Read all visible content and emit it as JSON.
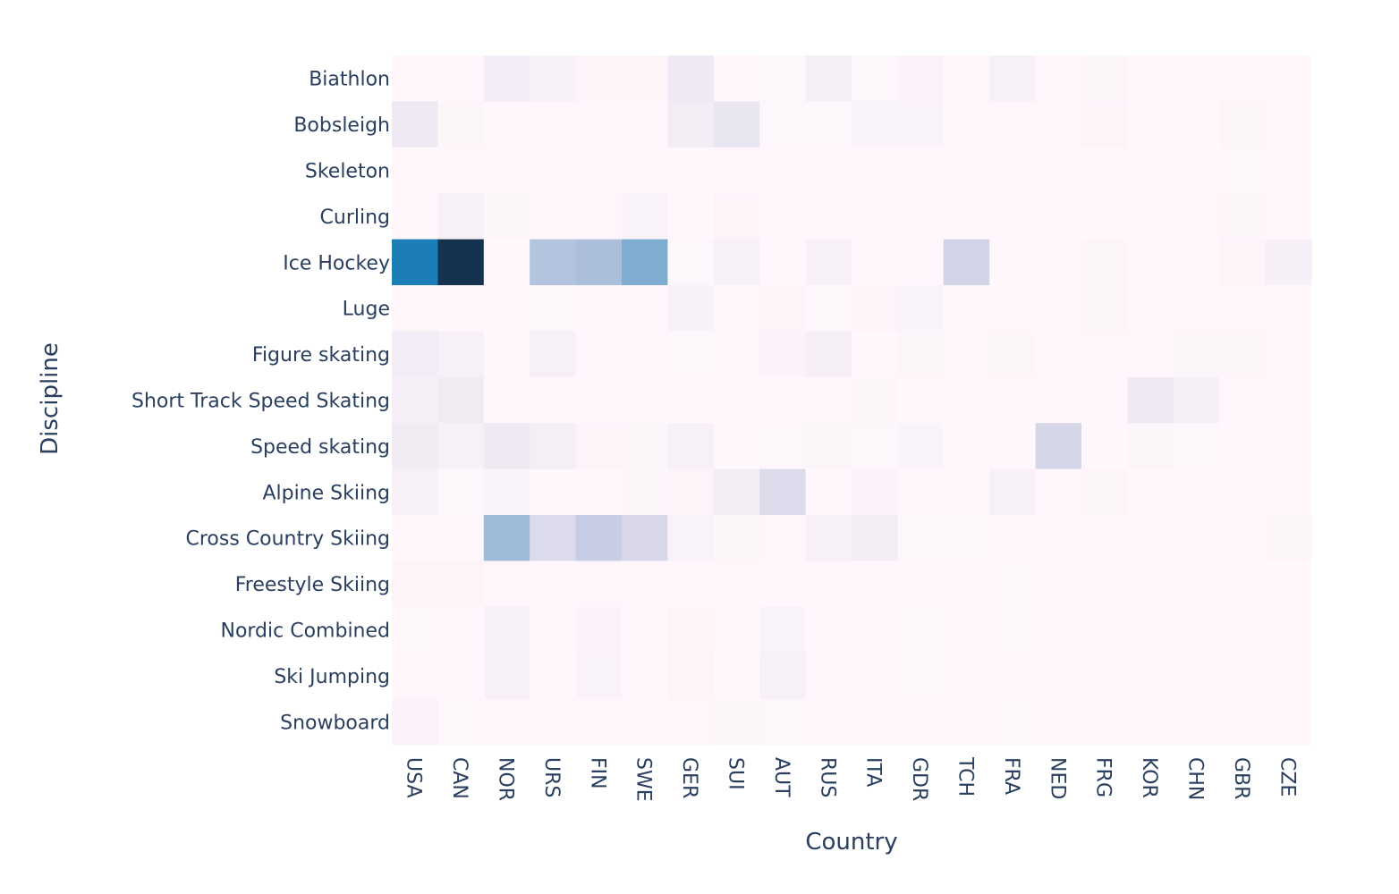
{
  "chart_data": {
    "type": "heatmap",
    "xlabel": "Country",
    "ylabel": "Discipline",
    "x": [
      "USA",
      "CAN",
      "NOR",
      "URS",
      "FIN",
      "SWE",
      "GER",
      "SUI",
      "AUT",
      "RUS",
      "ITA",
      "GDR",
      "TCH",
      "FRA",
      "NED",
      "FRG",
      "KOR",
      "CHN",
      "GBR",
      "CZE"
    ],
    "y": [
      "Biathlon",
      "Bobsleigh",
      "Skeleton",
      "Curling",
      "Ice Hockey",
      "Luge",
      "Figure skating",
      "Short Track Speed Skating",
      "Speed skating",
      "Alpine Skiing",
      "Cross Country Skiing",
      "Freestyle Skiing",
      "Nordic Combined",
      "Ski Jumping",
      "Snowboard"
    ],
    "z": [
      [
        0,
        0,
        32,
        16,
        8,
        8,
        38,
        0,
        4,
        26,
        4,
        10,
        0,
        20,
        0,
        6,
        0,
        0,
        0,
        2
      ],
      [
        40,
        6,
        0,
        2,
        0,
        0,
        30,
        50,
        4,
        4,
        12,
        14,
        0,
        2,
        0,
        8,
        0,
        0,
        6,
        0
      ],
      [
        2,
        2,
        0,
        0,
        0,
        0,
        2,
        2,
        0,
        1,
        0,
        0,
        0,
        0,
        0,
        0,
        0,
        0,
        4,
        0
      ],
      [
        0,
        20,
        6,
        0,
        2,
        12,
        0,
        8,
        0,
        0,
        0,
        0,
        0,
        2,
        0,
        0,
        0,
        2,
        6,
        0
      ],
      [
        250,
        450,
        0,
        120,
        130,
        170,
        4,
        18,
        0,
        18,
        0,
        0,
        85,
        0,
        0,
        6,
        0,
        0,
        8,
        22
      ],
      [
        2,
        0,
        0,
        4,
        0,
        0,
        16,
        0,
        8,
        4,
        8,
        12,
        0,
        0,
        0,
        6,
        0,
        0,
        0,
        0
      ],
      [
        32,
        18,
        0,
        18,
        0,
        2,
        4,
        2,
        10,
        22,
        0,
        6,
        2,
        6,
        0,
        2,
        2,
        6,
        6,
        0
      ],
      [
        22,
        34,
        0,
        0,
        0,
        0,
        0,
        0,
        0,
        2,
        6,
        0,
        0,
        0,
        0,
        0,
        38,
        22,
        0,
        0
      ],
      [
        34,
        20,
        38,
        26,
        8,
        6,
        20,
        0,
        4,
        6,
        4,
        12,
        0,
        0,
        80,
        0,
        6,
        4,
        0,
        2
      ],
      [
        20,
        4,
        12,
        0,
        0,
        6,
        8,
        30,
        70,
        0,
        10,
        0,
        0,
        18,
        0,
        6,
        0,
        0,
        0,
        0
      ],
      [
        0,
        2,
        140,
        70,
        100,
        78,
        14,
        6,
        2,
        18,
        30,
        4,
        4,
        2,
        0,
        0,
        0,
        0,
        0,
        6
      ],
      [
        8,
        8,
        2,
        0,
        2,
        2,
        0,
        2,
        0,
        2,
        0,
        0,
        0,
        4,
        0,
        0,
        0,
        2,
        0,
        0
      ],
      [
        4,
        0,
        18,
        0,
        10,
        0,
        8,
        2,
        14,
        0,
        0,
        4,
        0,
        4,
        0,
        2,
        0,
        0,
        0,
        0
      ],
      [
        0,
        0,
        18,
        0,
        14,
        0,
        8,
        0,
        20,
        0,
        0,
        4,
        2,
        0,
        0,
        0,
        0,
        0,
        0,
        0
      ],
      [
        10,
        4,
        2,
        2,
        2,
        2,
        2,
        6,
        4,
        2,
        2,
        2,
        2,
        4,
        0,
        0,
        0,
        0,
        0,
        0
      ]
    ],
    "zmax": 450,
    "colorscale": [
      [
        0.0,
        "#fff7fb"
      ],
      [
        0.1,
        "#ece7f2"
      ],
      [
        0.2,
        "#d0d1e6"
      ],
      [
        0.3,
        "#a6bddb"
      ],
      [
        0.4,
        "#74a9cf"
      ],
      [
        0.5,
        "#3690c0"
      ],
      [
        0.6,
        "#0570b0"
      ],
      [
        0.7,
        "#045a8d"
      ],
      [
        0.85,
        "#023858"
      ],
      [
        1.0,
        "#15324e"
      ]
    ]
  }
}
